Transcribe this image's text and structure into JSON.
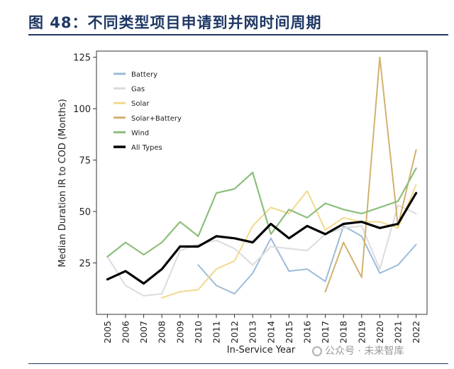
{
  "figure_title": "图 48：不同类型项目申请到并网时间周期",
  "watermark": "公众号 · 未来智库",
  "chart_data": {
    "type": "line",
    "title": "",
    "xlabel": "In-Service Year",
    "ylabel": "Median Duration IR to COD (Months)",
    "x": [
      2005,
      2006,
      2007,
      2008,
      2009,
      2010,
      2011,
      2012,
      2013,
      2014,
      2015,
      2016,
      2017,
      2018,
      2019,
      2020,
      2021,
      2022
    ],
    "xlim": [
      2004.4,
      2022.6
    ],
    "ylim": [
      0,
      128
    ],
    "yticks": [
      25,
      50,
      75,
      100,
      125
    ],
    "grid": false,
    "legend_position": "top-left",
    "series": [
      {
        "name": "Battery",
        "color": "#9dbbd8",
        "width": 2,
        "values": [
          null,
          null,
          null,
          null,
          null,
          24,
          14,
          10,
          20,
          37,
          21,
          22,
          16,
          43,
          38,
          20,
          24,
          34
        ]
      },
      {
        "name": "Gas",
        "color": "#dcdcdc",
        "width": 2,
        "values": [
          28,
          14,
          9,
          10,
          31,
          34,
          36,
          32,
          24,
          33,
          32,
          31,
          39,
          42,
          43,
          22,
          53,
          49
        ]
      },
      {
        "name": "Solar",
        "color": "#f2d98c",
        "width": 2,
        "values": [
          null,
          null,
          null,
          8,
          11,
          12,
          22,
          26,
          43,
          52,
          49,
          60,
          41,
          47,
          45,
          45,
          42,
          63
        ]
      },
      {
        "name": "Solar+Battery",
        "color": "#d2b16e",
        "width": 2,
        "values": [
          null,
          null,
          null,
          null,
          null,
          null,
          null,
          null,
          null,
          null,
          null,
          null,
          11,
          35,
          18,
          125,
          43,
          80
        ]
      },
      {
        "name": "Wind",
        "color": "#8cbf7c",
        "width": 2.2,
        "values": [
          28,
          35,
          29,
          35,
          45,
          38,
          59,
          61,
          69,
          39,
          51,
          47,
          54,
          51,
          49,
          52,
          55,
          71
        ]
      },
      {
        "name": "All Types",
        "color": "#000000",
        "width": 3.2,
        "values": [
          17,
          21,
          15,
          22,
          33,
          33,
          38,
          37,
          35,
          44,
          37,
          43,
          39,
          44,
          45,
          42,
          44,
          59
        ]
      }
    ]
  }
}
